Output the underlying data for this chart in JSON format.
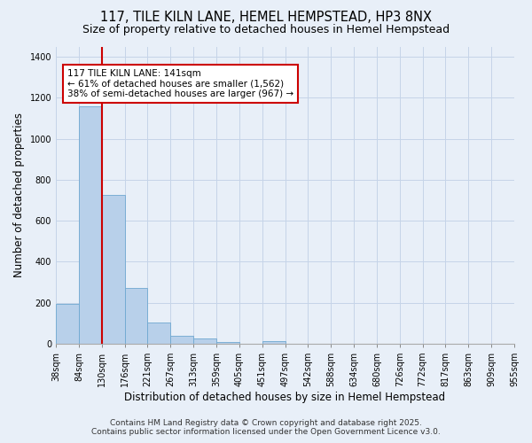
{
  "title": "117, TILE KILN LANE, HEMEL HEMPSTEAD, HP3 8NX",
  "subtitle": "Size of property relative to detached houses in Hemel Hempstead",
  "xlabel": "Distribution of detached houses by size in Hemel Hempstead",
  "ylabel": "Number of detached properties",
  "bar_values": [
    195,
    1160,
    725,
    270,
    105,
    38,
    25,
    10,
    0,
    12,
    0,
    0,
    0,
    0,
    0,
    0,
    0,
    0,
    0,
    0
  ],
  "bin_labels": [
    "38sqm",
    "84sqm",
    "130sqm",
    "176sqm",
    "221sqm",
    "267sqm",
    "313sqm",
    "359sqm",
    "405sqm",
    "451sqm",
    "497sqm",
    "542sqm",
    "588sqm",
    "634sqm",
    "680sqm",
    "726sqm",
    "772sqm",
    "817sqm",
    "863sqm",
    "909sqm",
    "955sqm"
  ],
  "bar_color": "#b8d0ea",
  "bar_edge_color": "#6fa8d0",
  "bg_color": "#e8eff8",
  "grid_color": "#c5d4e8",
  "red_line_x": 2.0,
  "annotation_text": "117 TILE KILN LANE: 141sqm\n← 61% of detached houses are smaller (1,562)\n38% of semi-detached houses are larger (967) →",
  "annotation_box_color": "white",
  "annotation_box_edge": "#cc0000",
  "footer_line1": "Contains HM Land Registry data © Crown copyright and database right 2025.",
  "footer_line2": "Contains public sector information licensed under the Open Government Licence v3.0.",
  "ylim": [
    0,
    1450
  ],
  "yticks": [
    0,
    200,
    400,
    600,
    800,
    1000,
    1200,
    1400
  ],
  "title_fontsize": 10.5,
  "subtitle_fontsize": 9,
  "ylabel_fontsize": 8.5,
  "xlabel_fontsize": 8.5,
  "tick_fontsize": 7,
  "footer_fontsize": 6.5,
  "annot_fontsize": 7.5
}
